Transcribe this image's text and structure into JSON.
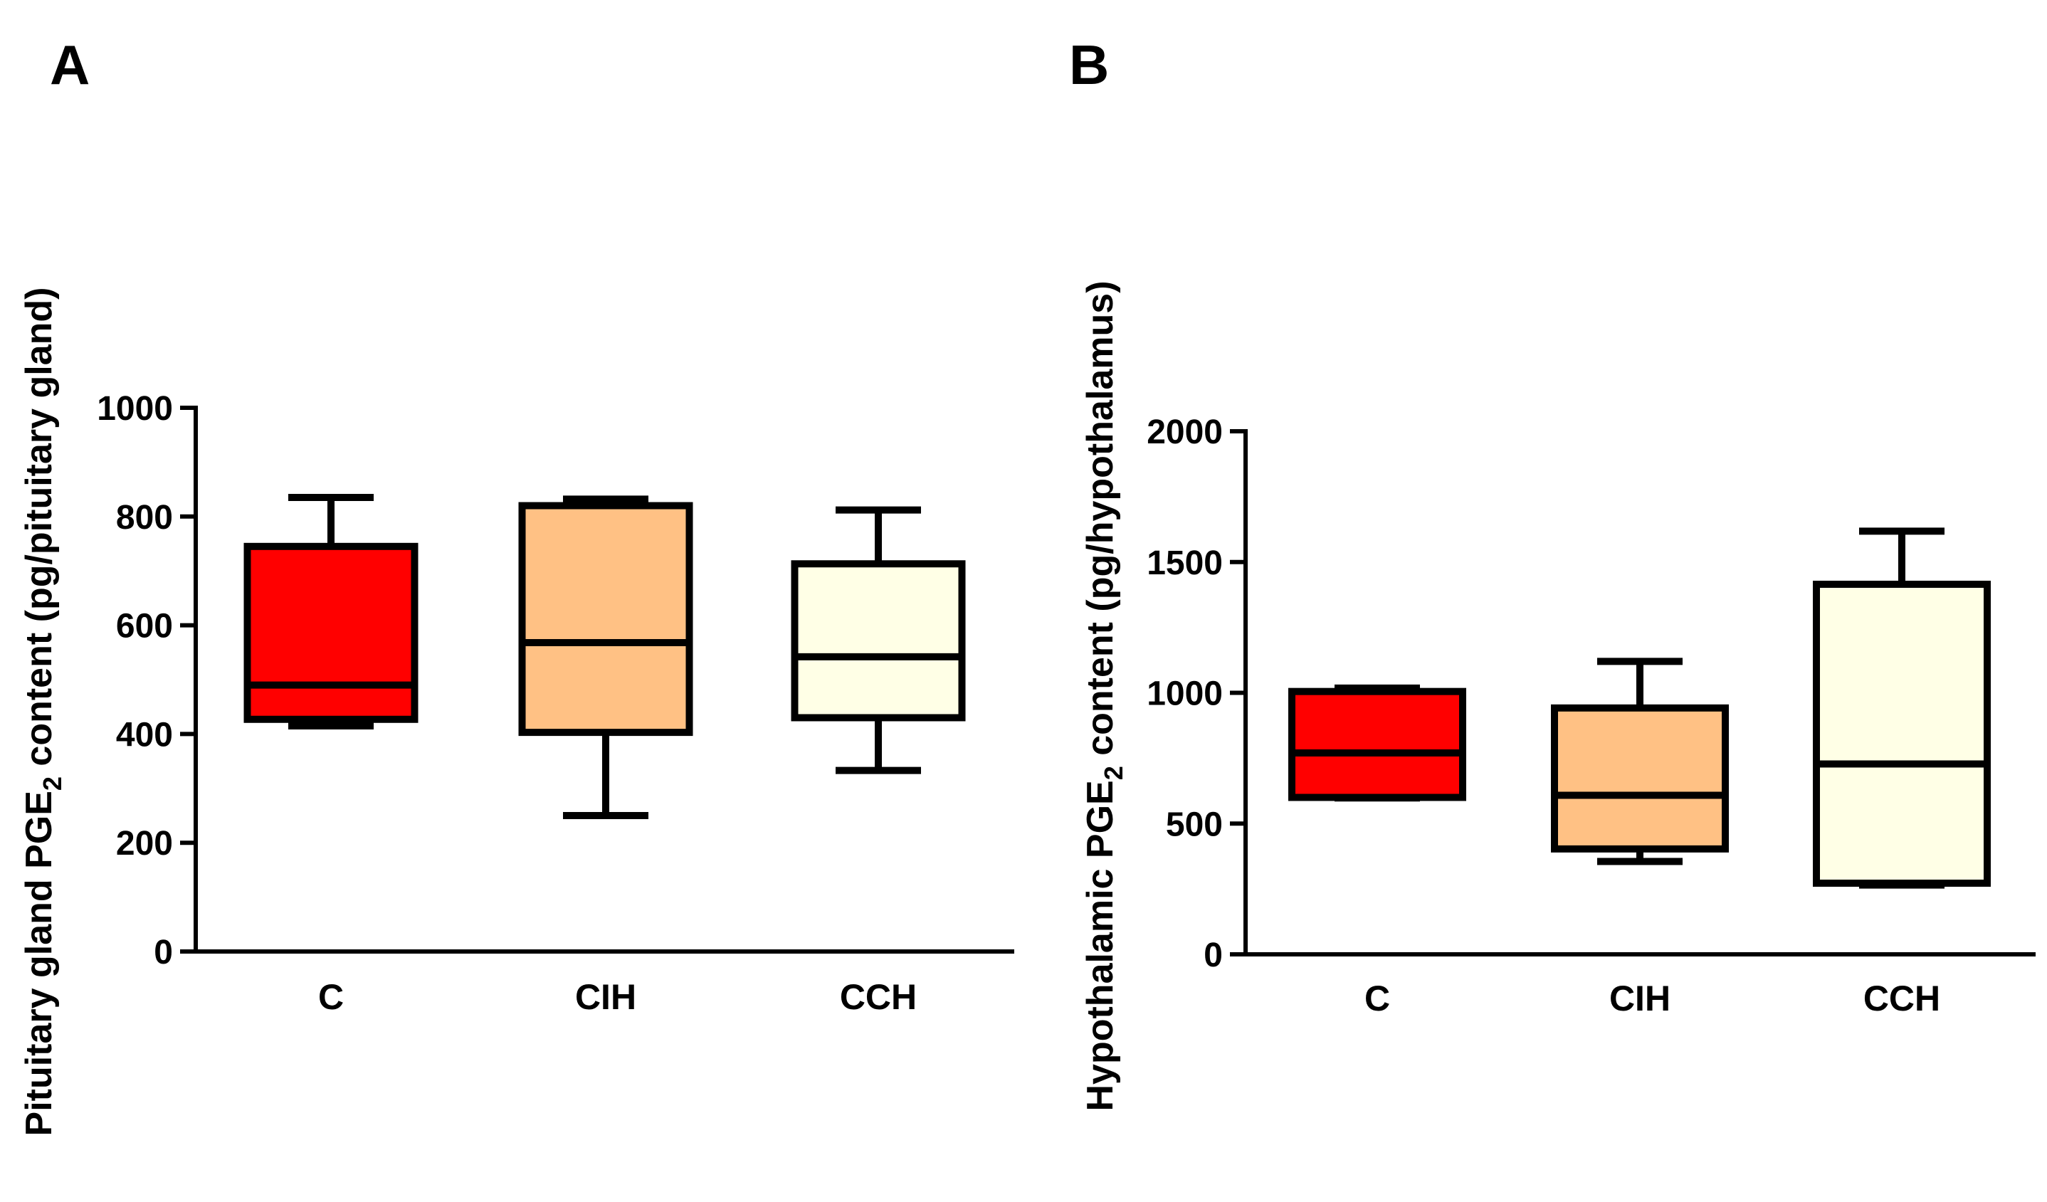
{
  "chart_data": [
    {
      "type": "boxplot",
      "panel_label": "A",
      "ylabel_main": "Pituitary gland PGE",
      "ylabel_sub": "2",
      "ylabel_tail": " content (pg/pituitary gland)",
      "ylim": [
        0,
        1000
      ],
      "yticks": [
        "0",
        "200",
        "400",
        "600",
        "800",
        "1000"
      ],
      "ytick_values": [
        0,
        200,
        400,
        600,
        800,
        1000
      ],
      "categories": [
        "C",
        "CIH",
        "CCH"
      ],
      "boxes": [
        {
          "name": "C",
          "min": 415,
          "q1": 427,
          "median": 490,
          "q3": 745,
          "max": 835,
          "color": "#ff0000"
        },
        {
          "name": "CIH",
          "min": 250,
          "q1": 403,
          "median": 568,
          "q3": 820,
          "max": 832,
          "color": "#ffc184"
        },
        {
          "name": "CCH",
          "min": 333,
          "q1": 430,
          "median": 542,
          "q3": 713,
          "max": 812,
          "color": "#ffffe6"
        }
      ]
    },
    {
      "type": "boxplot",
      "panel_label": "B",
      "ylabel_main": "Hypothalamic PGE",
      "ylabel_sub": "2",
      "ylabel_tail": " content (pg/hypothalamus)",
      "ylim": [
        0,
        2000
      ],
      "yticks": [
        "0",
        "500",
        "1000",
        "1500",
        "2000"
      ],
      "ytick_values": [
        0,
        500,
        1000,
        1500,
        2000
      ],
      "categories": [
        "C",
        "CIH",
        "CCH"
      ],
      "boxes": [
        {
          "name": "C",
          "min": 598,
          "q1": 600,
          "median": 770,
          "q3": 1005,
          "max": 1018,
          "color": "#ff0000"
        },
        {
          "name": "CIH",
          "min": 355,
          "q1": 403,
          "median": 608,
          "q3": 942,
          "max": 1120,
          "color": "#ffc184"
        },
        {
          "name": "CCH",
          "min": 265,
          "q1": 272,
          "median": 728,
          "q3": 1415,
          "max": 1618,
          "color": "#ffffe6"
        }
      ]
    }
  ]
}
